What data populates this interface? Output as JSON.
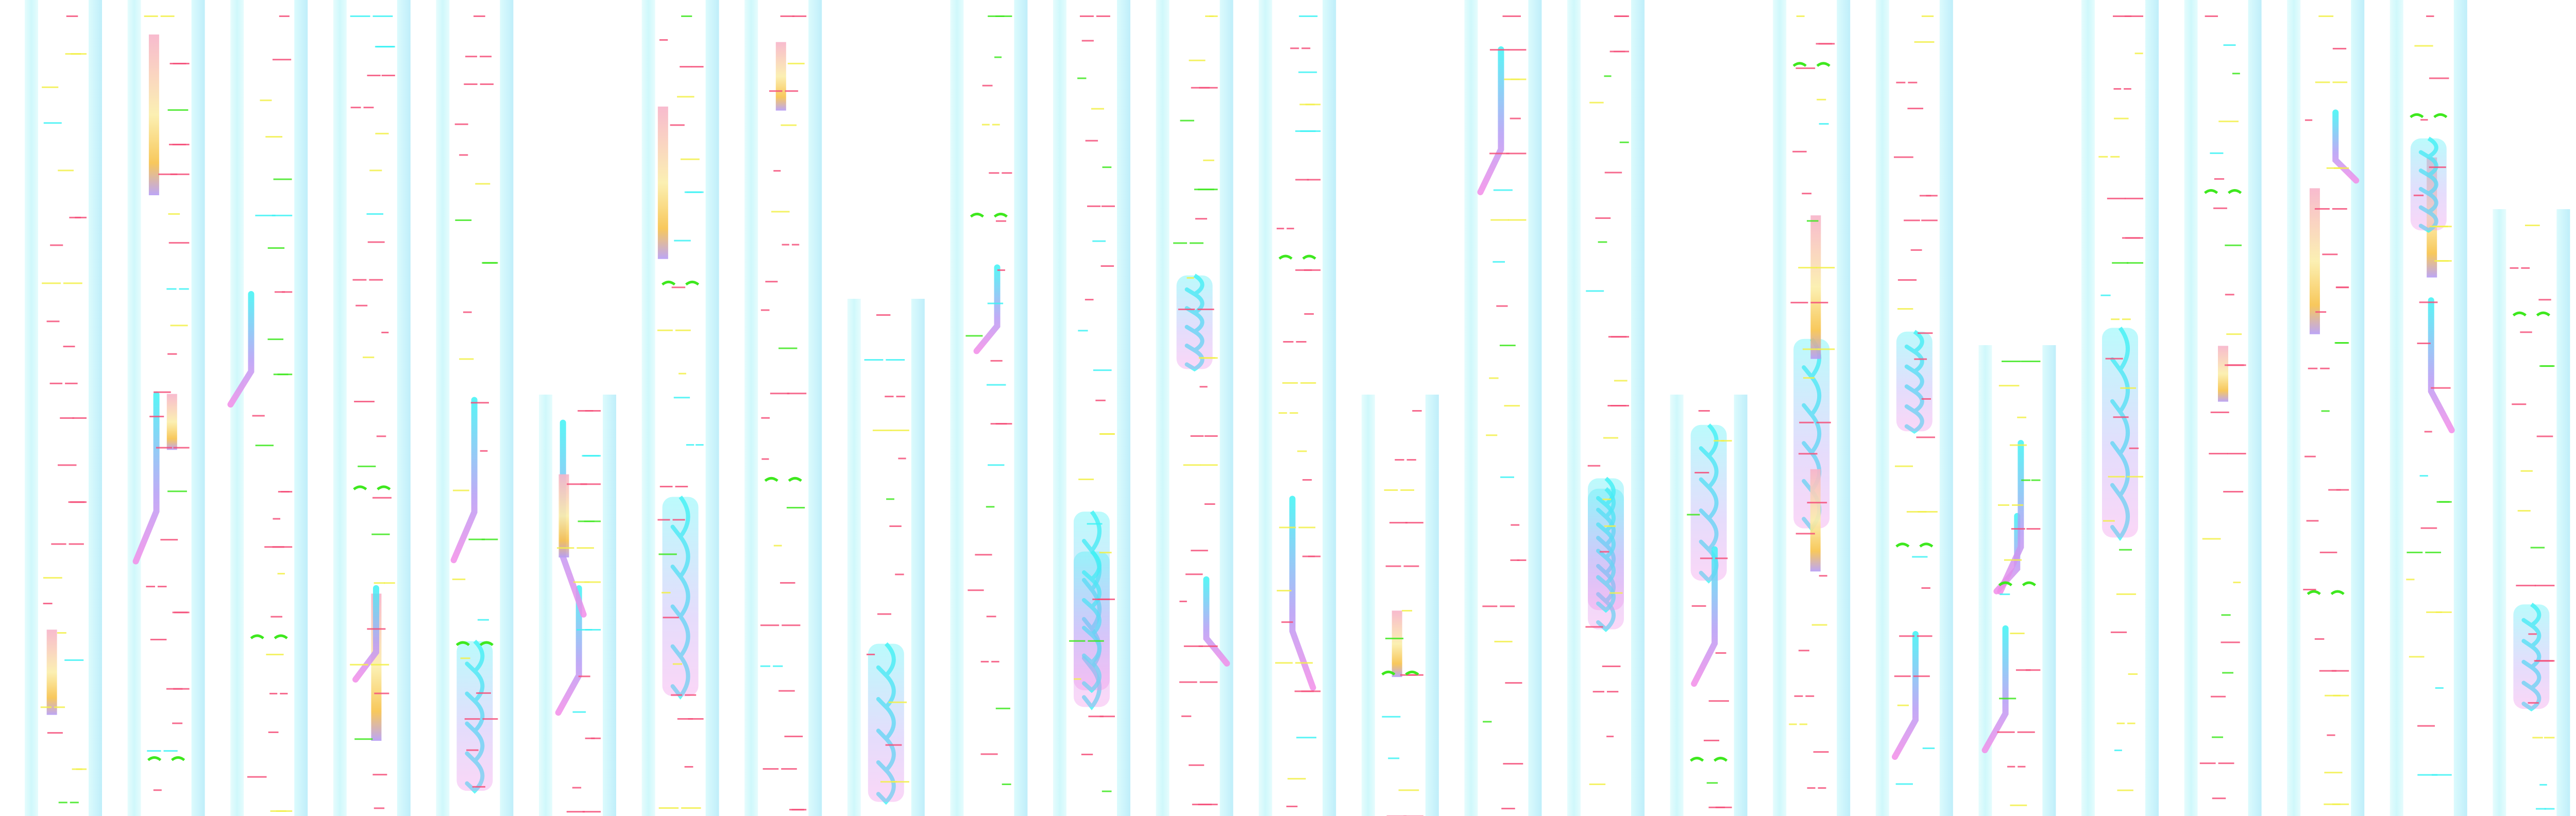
{
  "colors": {
    "background": "#ffffff",
    "strip_left": "#cff8fb",
    "strip_right": "#bfeefa",
    "trace_cyan": "#3ef2f5",
    "trace_violet": "#b59cf5",
    "trace_magenta": "#f28ce8",
    "marker_red": "#f5507a",
    "marker_yellow": "#f2f04a",
    "marker_green": "#3ee81e",
    "block_orange": "#f7c24a",
    "block_pink": "#f7b3c9",
    "block_yellow": "#fbeeaa"
  },
  "column_count": 25
}
